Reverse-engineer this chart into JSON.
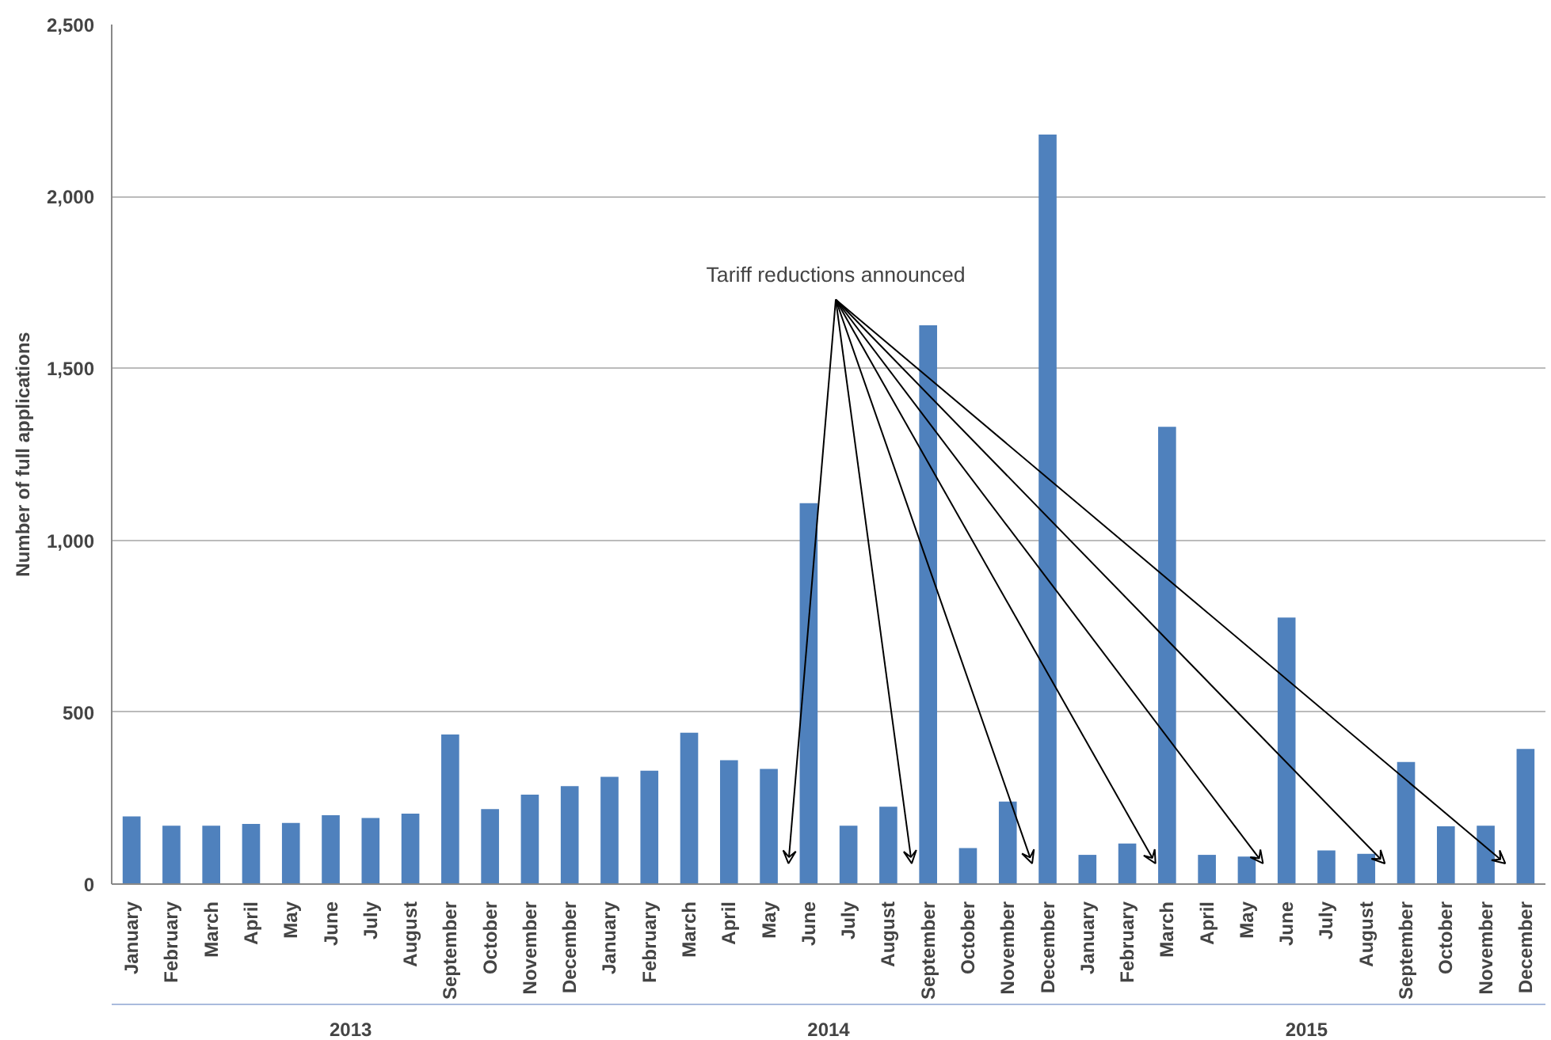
{
  "chart_data": {
    "type": "bar",
    "ylabel": "Number of full applications",
    "categories": [
      "January",
      "February",
      "March",
      "April",
      "May",
      "June",
      "July",
      "August",
      "September",
      "October",
      "November",
      "December",
      "January",
      "February",
      "March",
      "April",
      "May",
      "June",
      "July",
      "August",
      "September",
      "October",
      "November",
      "December",
      "January",
      "February",
      "March",
      "April",
      "May",
      "June",
      "July",
      "August",
      "September",
      "October",
      "November",
      "December"
    ],
    "values": [
      197,
      170,
      170,
      175,
      178,
      200,
      192,
      205,
      435,
      218,
      260,
      285,
      312,
      330,
      440,
      360,
      335,
      1108,
      170,
      225,
      1625,
      105,
      240,
      2180,
      85,
      118,
      1330,
      85,
      80,
      775,
      98,
      88,
      355,
      168,
      170,
      393
    ],
    "color": "#4f81bd",
    "ylim": [
      0,
      2500
    ],
    "yticks": [
      {
        "value": 0,
        "label": "0"
      },
      {
        "value": 500,
        "label": "500"
      },
      {
        "value": 1000,
        "label": "1,000"
      },
      {
        "value": 1500,
        "label": "1,500"
      },
      {
        "value": 2000,
        "label": "2,000"
      },
      {
        "value": 2500,
        "label": "2,500"
      }
    ],
    "grid": "y",
    "annotations": [
      "Tariff reductions announced",
      "2013",
      "2014",
      "2015"
    ]
  }
}
